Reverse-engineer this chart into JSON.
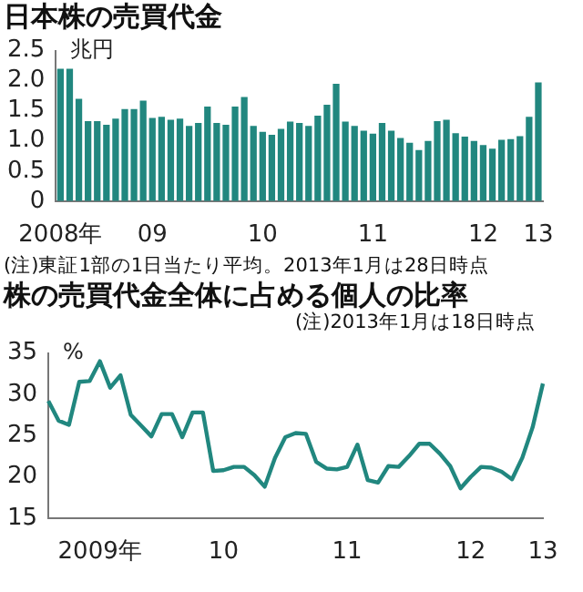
{
  "chart_data": [
    {
      "type": "bar",
      "title": "日本株の売買代金",
      "ylabel": "兆円",
      "annotations": [
        "(注)東証1部の1日当たり平均。2013年1月は28日時点"
      ],
      "categories": [
        "2008年",
        null,
        null,
        null,
        null,
        null,
        null,
        null,
        null,
        null,
        "09",
        null,
        null,
        null,
        null,
        null,
        null,
        null,
        null,
        null,
        null,
        null,
        "10",
        null,
        null,
        null,
        null,
        null,
        null,
        null,
        null,
        null,
        null,
        null,
        "11",
        null,
        null,
        null,
        null,
        null,
        null,
        null,
        null,
        null,
        null,
        null,
        "12",
        null,
        null,
        null,
        null,
        null,
        "13"
      ],
      "values": [
        2.2,
        2.2,
        1.7,
        1.33,
        1.33,
        1.27,
        1.37,
        1.53,
        1.53,
        1.67,
        1.38,
        1.4,
        1.35,
        1.37,
        1.25,
        1.3,
        1.57,
        1.3,
        1.27,
        1.57,
        1.73,
        1.25,
        1.15,
        1.1,
        1.2,
        1.32,
        1.3,
        1.25,
        1.42,
        1.6,
        1.95,
        1.32,
        1.25,
        1.17,
        1.12,
        1.3,
        1.17,
        1.05,
        0.97,
        0.85,
        1.0,
        1.33,
        1.35,
        1.13,
        1.07,
        1.0,
        0.93,
        0.87,
        1.02,
        1.03,
        1.08,
        1.4,
        1.97
      ],
      "color": "#21877f",
      "ylim": [
        0,
        2.5
      ],
      "yticks": [
        0,
        0.5,
        {
          "value": 1,
          "label": "1.0"
        },
        1.5,
        {
          "value": 2,
          "label": "2.0"
        },
        2.5
      ]
    },
    {
      "type": "line",
      "title": "株の売買代金全体に占める個人の比率",
      "ylabel": "%",
      "annotations": [
        "(注)2013年1月は18日時点"
      ],
      "categories": [
        null,
        null,
        null,
        null,
        null,
        "2009年",
        null,
        null,
        null,
        null,
        null,
        null,
        null,
        null,
        null,
        null,
        null,
        "10",
        null,
        null,
        null,
        null,
        null,
        null,
        null,
        null,
        null,
        null,
        null,
        "11",
        null,
        null,
        null,
        null,
        null,
        null,
        null,
        null,
        null,
        null,
        null,
        "12",
        null,
        null,
        null,
        null,
        null,
        null,
        "13"
      ],
      "values": [
        29.2,
        26.8,
        26.3,
        31.5,
        31.6,
        34.0,
        30.8,
        32.3,
        27.5,
        26.2,
        24.9,
        27.6,
        27.6,
        24.8,
        27.8,
        27.8,
        20.7,
        20.8,
        21.2,
        21.2,
        20.2,
        18.8,
        22.3,
        24.8,
        25.3,
        25.2,
        21.8,
        21.0,
        20.9,
        21.2,
        23.9,
        19.6,
        19.3,
        21.3,
        21.2,
        22.5,
        24.0,
        24.0,
        22.8,
        21.3,
        18.6,
        20.0,
        21.2,
        21.1,
        20.6,
        19.7,
        22.3,
        26.0,
        31.3
      ],
      "color": "#21877f",
      "marker": "none",
      "ylim": [
        15,
        35
      ],
      "yticks": [
        15,
        20,
        25,
        30,
        35
      ]
    }
  ]
}
